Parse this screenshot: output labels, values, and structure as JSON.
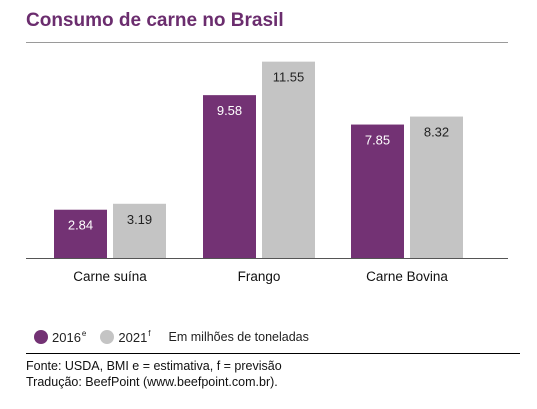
{
  "title": "Consumo de carne no Brasil",
  "colors": {
    "accent": "#6b2d6e",
    "series_2016": "#733274",
    "series_2021": "#c4c4c4",
    "label_2016": "#ffffff",
    "label_2021": "#222222"
  },
  "chart_data": {
    "type": "bar",
    "title": "Consumo de carne no Brasil",
    "categories": [
      "Carne suína",
      "Frango",
      "Carne Bovina"
    ],
    "series": [
      {
        "name": "2016e",
        "values": [
          2.84,
          9.58,
          7.85
        ],
        "labels": [
          "2.84",
          "9.58",
          "7.85"
        ]
      },
      {
        "name": "2021f",
        "values": [
          3.19,
          11.55,
          8.32
        ],
        "labels": [
          "3.19",
          "11.55",
          "8.32"
        ]
      }
    ],
    "ylim": [
      0,
      12
    ],
    "grid": false,
    "legend_position": "bottom-left",
    "unit": "Em milhões de toneladas"
  },
  "legend": {
    "items": [
      {
        "year": "2016",
        "sup": "e"
      },
      {
        "year": "2021",
        "sup": "f"
      }
    ],
    "unit": "Em milhões de toneladas"
  },
  "source": {
    "line1": "Fonte: USDA, BMI e = estimativa, f = previsão",
    "line2": "Tradução: BeefPoint (www.beefpoint.com.br)."
  }
}
